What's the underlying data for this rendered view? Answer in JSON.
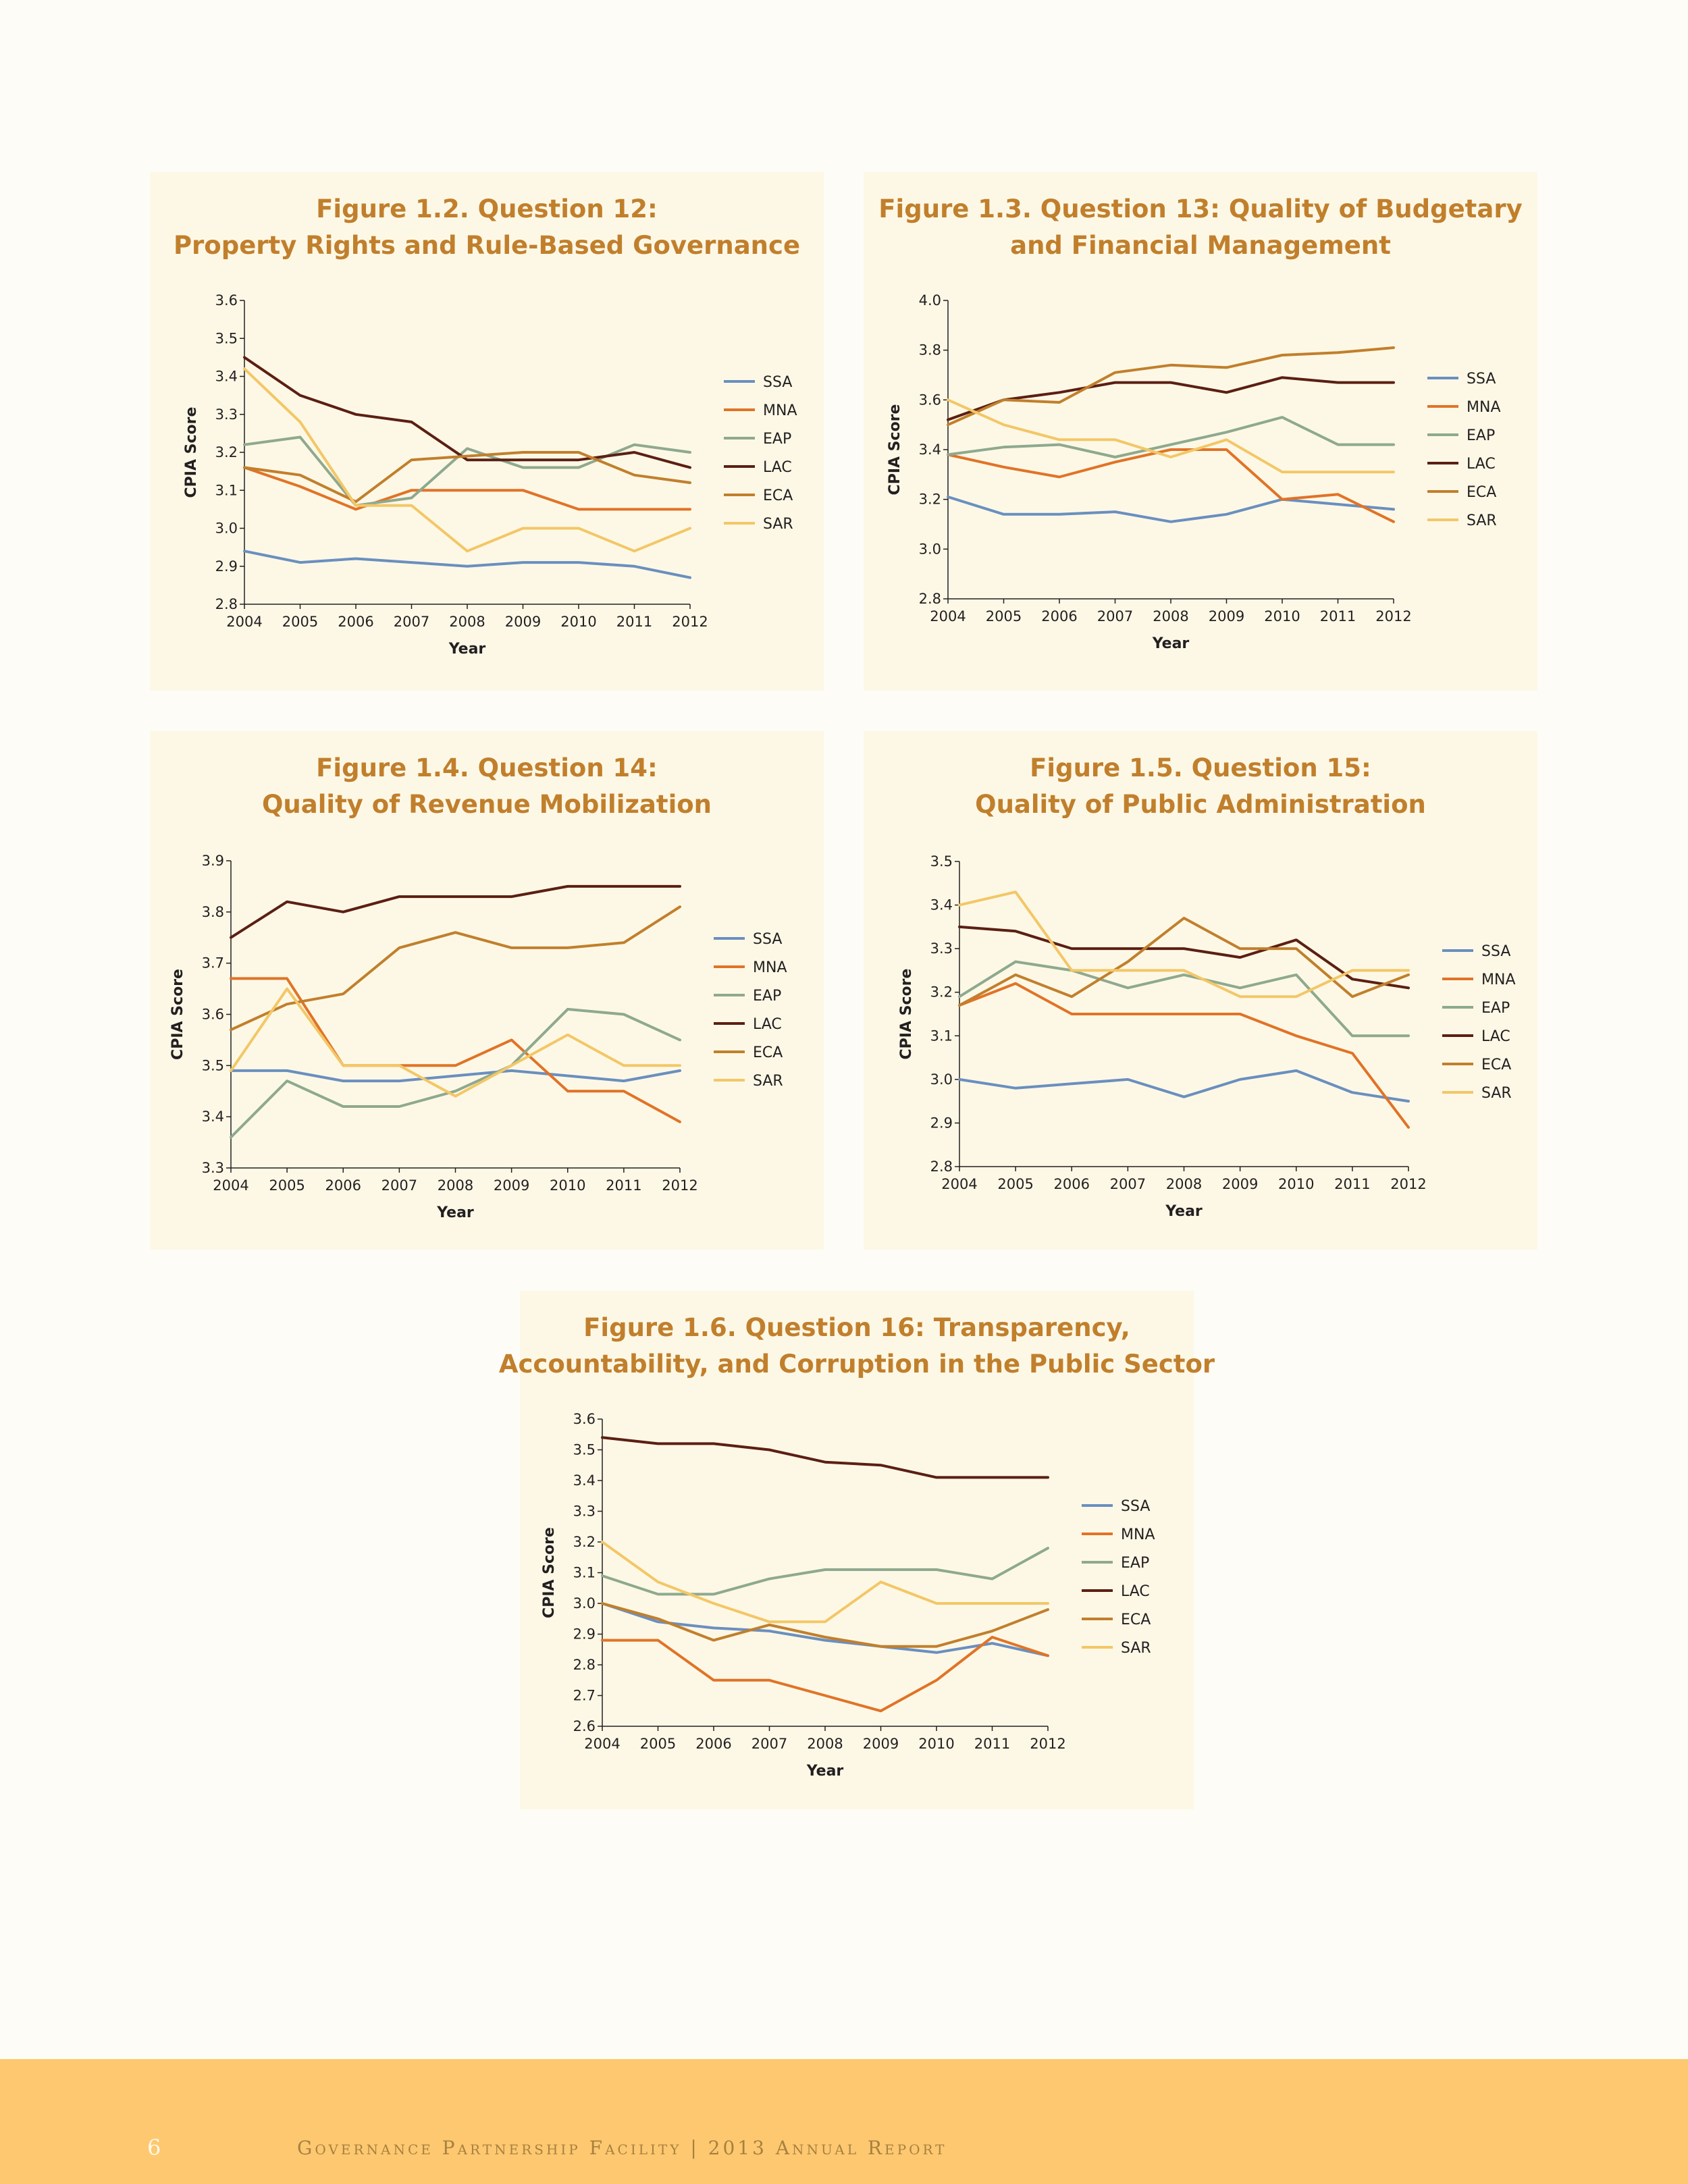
{
  "chart_data": [
    {
      "type": "line",
      "title": [
        "Figure 1.2. Question 12:",
        "Property Rights and Rule-Based Governance"
      ],
      "xlabel": "Year",
      "ylabel": "CPIA Score",
      "x": [
        "2004",
        "2005",
        "2006",
        "2007",
        "2008",
        "2009",
        "2010",
        "2011",
        "2012"
      ],
      "ylim": [
        2.8,
        3.6
      ],
      "yticks": [
        "2.8",
        "2.9",
        "3.0",
        "3.1",
        "3.2",
        "3.3",
        "3.4",
        "3.5",
        "3.6"
      ],
      "legend": "right",
      "series": [
        {
          "name": "SSA",
          "color": "#6a8fbf",
          "values": [
            2.94,
            2.91,
            2.92,
            2.91,
            2.9,
            2.91,
            2.91,
            2.9,
            2.87
          ]
        },
        {
          "name": "MNA",
          "color": "#e17327",
          "values": [
            3.16,
            3.11,
            3.05,
            3.1,
            3.1,
            3.1,
            3.05,
            3.05,
            3.05
          ]
        },
        {
          "name": "EAP",
          "color": "#8ea98e",
          "values": [
            3.22,
            3.24,
            3.06,
            3.08,
            3.21,
            3.16,
            3.16,
            3.22,
            3.2
          ]
        },
        {
          "name": "LAC",
          "color": "#5c1f13",
          "values": [
            3.45,
            3.35,
            3.3,
            3.28,
            3.18,
            3.18,
            3.18,
            3.2,
            3.16
          ]
        },
        {
          "name": "ECA",
          "color": "#c17f2c",
          "values": [
            3.16,
            3.14,
            3.07,
            3.18,
            3.19,
            3.2,
            3.2,
            3.14,
            3.12
          ]
        },
        {
          "name": "SAR",
          "color": "#f3c767",
          "values": [
            3.42,
            3.28,
            3.06,
            3.06,
            2.94,
            3.0,
            3.0,
            2.94,
            3.0
          ]
        }
      ]
    },
    {
      "type": "line",
      "title": [
        "Figure 1.3. Question 13: Quality of Budgetary",
        "and Financial Management"
      ],
      "xlabel": "Year",
      "ylabel": "CPIA Score",
      "x": [
        "2004",
        "2005",
        "2006",
        "2007",
        "2008",
        "2009",
        "2010",
        "2011",
        "2012"
      ],
      "ylim": [
        2.8,
        4.0
      ],
      "yticks": [
        "2.8",
        "3.0",
        "3.2",
        "3.4",
        "3.6",
        "3.8",
        "4.0"
      ],
      "legend": "right",
      "series": [
        {
          "name": "SSA",
          "color": "#6a8fbf",
          "values": [
            3.21,
            3.14,
            3.14,
            3.15,
            3.11,
            3.14,
            3.2,
            3.18,
            3.16
          ]
        },
        {
          "name": "MNA",
          "color": "#e17327",
          "values": [
            3.38,
            3.33,
            3.29,
            3.35,
            3.4,
            3.4,
            3.2,
            3.22,
            3.11
          ]
        },
        {
          "name": "EAP",
          "color": "#8ea98e",
          "values": [
            3.38,
            3.41,
            3.42,
            3.37,
            3.42,
            3.47,
            3.53,
            3.42,
            3.42
          ]
        },
        {
          "name": "LAC",
          "color": "#5c1f13",
          "values": [
            3.52,
            3.6,
            3.63,
            3.67,
            3.67,
            3.63,
            3.69,
            3.67,
            3.67
          ]
        },
        {
          "name": "ECA",
          "color": "#c17f2c",
          "values": [
            3.5,
            3.6,
            3.59,
            3.71,
            3.74,
            3.73,
            3.78,
            3.79,
            3.81
          ]
        },
        {
          "name": "SAR",
          "color": "#f3c767",
          "values": [
            3.6,
            3.5,
            3.44,
            3.44,
            3.37,
            3.44,
            3.31,
            3.31,
            3.31
          ]
        }
      ]
    },
    {
      "type": "line",
      "title": [
        "Figure 1.4. Question 14:",
        "Quality of Revenue Mobilization"
      ],
      "xlabel": "Year",
      "ylabel": "CPIA Score",
      "x": [
        "2004",
        "2005",
        "2006",
        "2007",
        "2008",
        "2009",
        "2010",
        "2011",
        "2012"
      ],
      "ylim": [
        3.3,
        3.9
      ],
      "yticks": [
        "3.3",
        "3.4",
        "3.5",
        "3.6",
        "3.7",
        "3.8",
        "3.9"
      ],
      "legend": "right",
      "series": [
        {
          "name": "SSA",
          "color": "#6a8fbf",
          "values": [
            3.49,
            3.49,
            3.47,
            3.47,
            3.48,
            3.49,
            3.48,
            3.47,
            3.49
          ]
        },
        {
          "name": "MNA",
          "color": "#e17327",
          "values": [
            3.67,
            3.67,
            3.5,
            3.5,
            3.5,
            3.55,
            3.45,
            3.45,
            3.39
          ]
        },
        {
          "name": "EAP",
          "color": "#8ea98e",
          "values": [
            3.36,
            3.47,
            3.42,
            3.42,
            3.45,
            3.5,
            3.61,
            3.6,
            3.55
          ]
        },
        {
          "name": "LAC",
          "color": "#5c1f13",
          "values": [
            3.75,
            3.82,
            3.8,
            3.83,
            3.83,
            3.83,
            3.85,
            3.85,
            3.85
          ]
        },
        {
          "name": "ECA",
          "color": "#c17f2c",
          "values": [
            3.57,
            3.62,
            3.64,
            3.73,
            3.76,
            3.73,
            3.73,
            3.74,
            3.81
          ]
        },
        {
          "name": "SAR",
          "color": "#f3c767",
          "values": [
            3.49,
            3.65,
            3.5,
            3.5,
            3.44,
            3.5,
            3.56,
            3.5,
            3.5
          ]
        }
      ]
    },
    {
      "type": "line",
      "title": [
        "Figure 1.5. Question 15:",
        "Quality of Public Administration"
      ],
      "xlabel": "Year",
      "ylabel": "CPIA Score",
      "x": [
        "2004",
        "2005",
        "2006",
        "2007",
        "2008",
        "2009",
        "2010",
        "2011",
        "2012"
      ],
      "ylim": [
        2.8,
        3.5
      ],
      "yticks": [
        "2.8",
        "2.9",
        "3.0",
        "3.1",
        "3.2",
        "3.3",
        "3.4",
        "3.5"
      ],
      "legend": "right",
      "series": [
        {
          "name": "SSA",
          "color": "#6a8fbf",
          "values": [
            3.0,
            2.98,
            2.99,
            3.0,
            2.96,
            3.0,
            3.02,
            2.97,
            2.95
          ]
        },
        {
          "name": "MNA",
          "color": "#e17327",
          "values": [
            3.17,
            3.22,
            3.15,
            3.15,
            3.15,
            3.15,
            3.1,
            3.06,
            2.89
          ]
        },
        {
          "name": "EAP",
          "color": "#8ea98e",
          "values": [
            3.19,
            3.27,
            3.25,
            3.21,
            3.24,
            3.21,
            3.24,
            3.1,
            3.1
          ]
        },
        {
          "name": "LAC",
          "color": "#5c1f13",
          "values": [
            3.35,
            3.34,
            3.3,
            3.3,
            3.3,
            3.28,
            3.32,
            3.23,
            3.21
          ]
        },
        {
          "name": "ECA",
          "color": "#c17f2c",
          "values": [
            3.17,
            3.24,
            3.19,
            3.27,
            3.37,
            3.3,
            3.3,
            3.19,
            3.24
          ]
        },
        {
          "name": "SAR",
          "color": "#f3c767",
          "values": [
            3.4,
            3.43,
            3.25,
            3.25,
            3.25,
            3.19,
            3.19,
            3.25,
            3.25
          ]
        }
      ]
    },
    {
      "type": "line",
      "title": [
        "Figure 1.6. Question 16: Transparency,",
        "Accountability, and Corruption in the Public Sector"
      ],
      "xlabel": "Year",
      "ylabel": "CPIA Score",
      "x": [
        "2004",
        "2005",
        "2006",
        "2007",
        "2008",
        "2009",
        "2010",
        "2011",
        "2012"
      ],
      "ylim": [
        2.6,
        3.6
      ],
      "yticks": [
        "2.6",
        "2.7",
        "2.8",
        "2.9",
        "3.0",
        "3.1",
        "3.2",
        "3.3",
        "3.4",
        "3.5",
        "3.6"
      ],
      "legend": "right",
      "series": [
        {
          "name": "SSA",
          "color": "#6a8fbf",
          "values": [
            3.0,
            2.94,
            2.92,
            2.91,
            2.88,
            2.86,
            2.84,
            2.87,
            2.83
          ]
        },
        {
          "name": "MNA",
          "color": "#e17327",
          "values": [
            2.88,
            2.88,
            2.75,
            2.75,
            2.7,
            2.65,
            2.75,
            2.89,
            2.83
          ]
        },
        {
          "name": "EAP",
          "color": "#8ea98e",
          "values": [
            3.09,
            3.03,
            3.03,
            3.08,
            3.11,
            3.11,
            3.11,
            3.08,
            3.18
          ]
        },
        {
          "name": "LAC",
          "color": "#5c1f13",
          "values": [
            3.54,
            3.52,
            3.52,
            3.5,
            3.46,
            3.45,
            3.41,
            3.41,
            3.41
          ]
        },
        {
          "name": "ECA",
          "color": "#c17f2c",
          "values": [
            3.0,
            2.95,
            2.88,
            2.93,
            2.89,
            2.86,
            2.86,
            2.91,
            2.98
          ]
        },
        {
          "name": "SAR",
          "color": "#f3c767",
          "values": [
            3.2,
            3.07,
            3.0,
            2.94,
            2.94,
            3.07,
            3.0,
            3.0,
            3.0
          ]
        }
      ]
    }
  ],
  "footer": {
    "page_number": "6",
    "text": "Governance Partnership Facility | 2013 Annual Report"
  }
}
